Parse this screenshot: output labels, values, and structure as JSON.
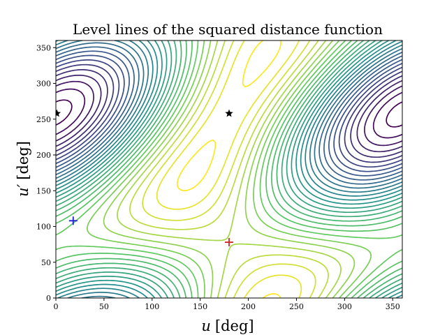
{
  "chart_data": {
    "type": "contour",
    "title": "Level lines of the squared distance function",
    "xlabel_symbol": "u",
    "xlabel_unit": "[deg]",
    "ylabel_symbol": "u′",
    "ylabel_unit": "[deg]",
    "xlim": [
      0,
      360
    ],
    "ylim": [
      0,
      360
    ],
    "xticks": [
      0,
      50,
      100,
      150,
      200,
      250,
      300,
      350
    ],
    "yticks": [
      0,
      50,
      100,
      150,
      200,
      250,
      300,
      350
    ],
    "grid": false,
    "colormap": "viridis",
    "colormap_stops": [
      "#440154",
      "#3b528b",
      "#21918c",
      "#5ec962",
      "#fde725"
    ],
    "levels": 30,
    "field": {
      "description": "squared distance as function of (u, u′), periodic on [0,360)",
      "global_max": [
        180,
        78
      ],
      "global_min_approx": [
        18,
        108
      ]
    },
    "markers": [
      {
        "name": "maximum",
        "symbol": "plus",
        "color": "#d62728",
        "x": 180,
        "y": 78
      },
      {
        "name": "minimum",
        "symbol": "plus",
        "color": "#1f1fd6",
        "x": 18,
        "y": 108
      },
      {
        "name": "saddle-1",
        "symbol": "star",
        "color": "#000000",
        "x": 1,
        "y": 258
      },
      {
        "name": "saddle-2",
        "symbol": "star",
        "color": "#000000",
        "x": 180,
        "y": 258
      }
    ]
  }
}
